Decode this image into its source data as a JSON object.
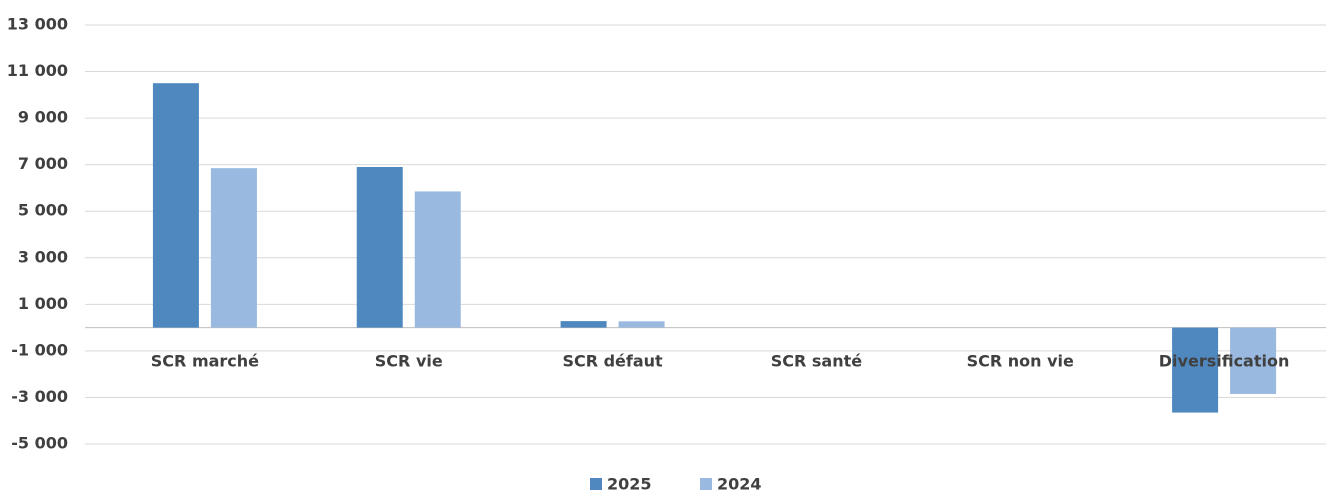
{
  "chart_data": {
    "type": "bar",
    "categories": [
      "SCR marché",
      "SCR vie",
      "SCR défaut",
      "SCR santé",
      "SCR non vie",
      "Diversification"
    ],
    "series": [
      {
        "name": "2025",
        "color": "#4f88bf",
        "values": [
          10500,
          6900,
          280,
          0,
          0,
          -3650
        ]
      },
      {
        "name": "2024",
        "color": "#9ab9e0",
        "values": [
          6850,
          5850,
          270,
          0,
          0,
          -2850
        ]
      }
    ],
    "ylim": [
      -5000,
      13000
    ],
    "yticks": [
      {
        "value": -5000,
        "label": "-5 000"
      },
      {
        "value": -3000,
        "label": "-3 000"
      },
      {
        "value": -1000,
        "label": "-1 000"
      },
      {
        "value": 1000,
        "label": "1 000"
      },
      {
        "value": 3000,
        "label": "3 000"
      },
      {
        "value": 5000,
        "label": "5 000"
      },
      {
        "value": 7000,
        "label": "7 000"
      },
      {
        "value": 9000,
        "label": "9 000"
      },
      {
        "value": 11000,
        "label": "11 000"
      },
      {
        "value": 13000,
        "label": "13 000"
      }
    ],
    "grid": true,
    "legend": "bottom"
  }
}
